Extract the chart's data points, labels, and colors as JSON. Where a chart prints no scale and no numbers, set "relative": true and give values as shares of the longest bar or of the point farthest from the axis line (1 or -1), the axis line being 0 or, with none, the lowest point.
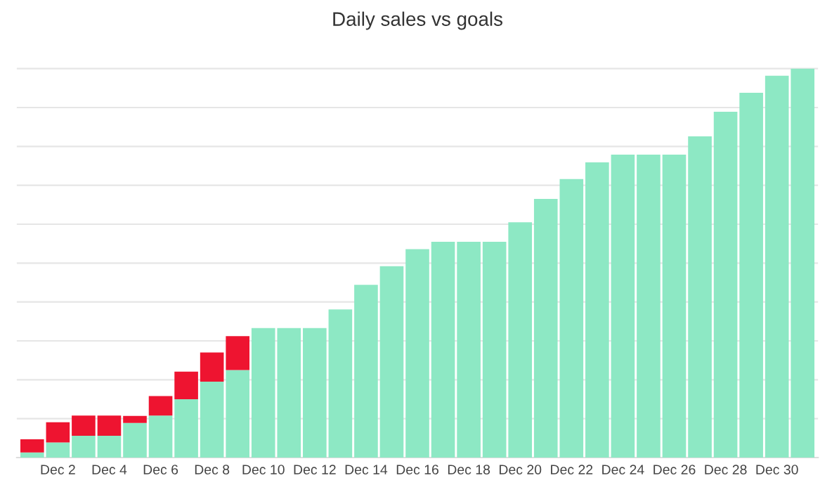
{
  "chart_data": {
    "type": "bar",
    "title": "Daily sales vs goals",
    "relative": true,
    "stacked": true,
    "grid": "y",
    "categories": [
      null,
      "Dec 2",
      null,
      "Dec 4",
      null,
      "Dec 6",
      null,
      "Dec 8",
      null,
      "Dec 10",
      null,
      "Dec 12",
      null,
      "Dec 14",
      null,
      "Dec 16",
      null,
      "Dec 18",
      null,
      "Dec 20",
      null,
      "Dec 22",
      null,
      "Dec 24",
      null,
      "Dec 26",
      null,
      "Dec 28",
      null,
      "Dec 30",
      null
    ],
    "series": [
      {
        "color": "#8de8c4",
        "values": [
          0.013,
          0.039,
          0.056,
          0.056,
          0.089,
          0.108,
          0.15,
          0.195,
          0.225,
          0.333,
          0.333,
          0.333,
          0.381,
          0.444,
          0.492,
          0.536,
          0.555,
          0.555,
          0.555,
          0.605,
          0.665,
          0.716,
          0.759,
          0.779,
          0.779,
          0.779,
          0.826,
          0.889,
          0.938,
          0.982,
          1
        ]
      },
      {
        "color": "#ee1430",
        "values": [
          0.034,
          0.052,
          0.052,
          0.052,
          0.018,
          0.05,
          0.071,
          0.075,
          0.087,
          null,
          null,
          null,
          null,
          null,
          null,
          null,
          null,
          null,
          null,
          null,
          null,
          null,
          null,
          null,
          null,
          null,
          null,
          null,
          null,
          null,
          null
        ]
      }
    ]
  }
}
